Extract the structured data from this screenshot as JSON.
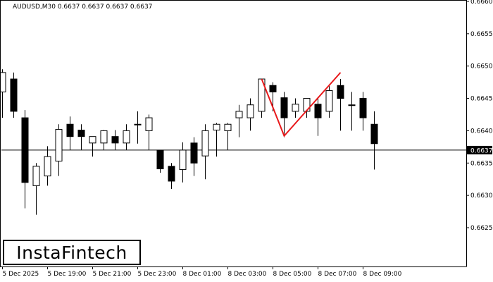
{
  "header": {
    "text": "AUDUSD,M30  0.6637 0.6637 0.6637 0.6637"
  },
  "logo": {
    "text": "InstaFintech"
  },
  "colors": {
    "background": "#ffffff",
    "axis": "#000000",
    "bull_body": "#ffffff",
    "bear_body": "#000000",
    "candle_outline": "#000000",
    "price_line": "#000000",
    "pattern_line": "#e8191b",
    "price_label_bg": "#000000",
    "price_label_text": "#ffffff"
  },
  "chart_data": {
    "type": "candlestick",
    "symbol": "AUDUSD",
    "timeframe": "M30",
    "ylim": [
      0.6619,
      0.666
    ],
    "y_ticks": [
      "0.6660",
      "0.6655",
      "0.6650",
      "0.6645",
      "0.6640",
      "0.6635",
      "0.6630",
      "0.6625"
    ],
    "x_ticks": [
      {
        "index": 0,
        "label": "5 Dec 2025"
      },
      {
        "index": 4,
        "label": "5 Dec 19:00"
      },
      {
        "index": 8,
        "label": "5 Dec 21:00"
      },
      {
        "index": 12,
        "label": "5 Dec 23:00"
      },
      {
        "index": 16,
        "label": "8 Dec 01:00"
      },
      {
        "index": 20,
        "label": "8 Dec 03:00"
      },
      {
        "index": 24,
        "label": "8 Dec 05:00"
      },
      {
        "index": 28,
        "label": "8 Dec 07:00"
      },
      {
        "index": 32,
        "label": "8 Dec 09:00"
      }
    ],
    "current_price": "0.6637",
    "current_price_value": 0.6637,
    "candles": [
      {
        "o": 0.6646,
        "h": 0.66495,
        "l": 0.6642,
        "c": 0.6649
      },
      {
        "o": 0.6648,
        "h": 0.6649,
        "l": 0.6642,
        "c": 0.6643
      },
      {
        "o": 0.6642,
        "h": 0.66432,
        "l": 0.6628,
        "c": 0.6632
      },
      {
        "o": 0.66315,
        "h": 0.6635,
        "l": 0.6627,
        "c": 0.66345
      },
      {
        "o": 0.6633,
        "h": 0.66376,
        "l": 0.66315,
        "c": 0.6636
      },
      {
        "o": 0.66353,
        "h": 0.6641,
        "l": 0.6633,
        "c": 0.66402
      },
      {
        "o": 0.6641,
        "h": 0.66422,
        "l": 0.6637,
        "c": 0.66391
      },
      {
        "o": 0.66401,
        "h": 0.6641,
        "l": 0.6637,
        "c": 0.66391
      },
      {
        "o": 0.66381,
        "h": 0.66391,
        "l": 0.6636,
        "c": 0.66391
      },
      {
        "o": 0.66381,
        "h": 0.66401,
        "l": 0.6637,
        "c": 0.664
      },
      {
        "o": 0.66391,
        "h": 0.66401,
        "l": 0.6637,
        "c": 0.66381
      },
      {
        "o": 0.66381,
        "h": 0.6641,
        "l": 0.6637,
        "c": 0.664
      },
      {
        "o": 0.6641,
        "h": 0.6643,
        "l": 0.6638,
        "c": 0.6641
      },
      {
        "o": 0.664,
        "h": 0.66425,
        "l": 0.6637,
        "c": 0.6642
      },
      {
        "o": 0.6637,
        "h": 0.6637,
        "l": 0.66335,
        "c": 0.66341
      },
      {
        "o": 0.66345,
        "h": 0.6635,
        "l": 0.6631,
        "c": 0.66322
      },
      {
        "o": 0.6634,
        "h": 0.66382,
        "l": 0.6632,
        "c": 0.6637
      },
      {
        "o": 0.66381,
        "h": 0.6639,
        "l": 0.6633,
        "c": 0.6635
      },
      {
        "o": 0.66361,
        "h": 0.6641,
        "l": 0.66325,
        "c": 0.664
      },
      {
        "o": 0.66401,
        "h": 0.66412,
        "l": 0.6636,
        "c": 0.6641
      },
      {
        "o": 0.664,
        "h": 0.66412,
        "l": 0.6637,
        "c": 0.6641
      },
      {
        "o": 0.6642,
        "h": 0.6644,
        "l": 0.6639,
        "c": 0.6643
      },
      {
        "o": 0.6642,
        "h": 0.6645,
        "l": 0.664,
        "c": 0.6644
      },
      {
        "o": 0.6643,
        "h": 0.6648,
        "l": 0.6642,
        "c": 0.6648
      },
      {
        "o": 0.6647,
        "h": 0.66475,
        "l": 0.6643,
        "c": 0.6646
      },
      {
        "o": 0.66451,
        "h": 0.6646,
        "l": 0.6639,
        "c": 0.6642
      },
      {
        "o": 0.6643,
        "h": 0.6645,
        "l": 0.6642,
        "c": 0.66441
      },
      {
        "o": 0.6643,
        "h": 0.6645,
        "l": 0.6642,
        "c": 0.6645
      },
      {
        "o": 0.66441,
        "h": 0.6645,
        "l": 0.66392,
        "c": 0.6642
      },
      {
        "o": 0.6643,
        "h": 0.6647,
        "l": 0.6642,
        "c": 0.66462
      },
      {
        "o": 0.6647,
        "h": 0.6648,
        "l": 0.664,
        "c": 0.6645
      },
      {
        "o": 0.6644,
        "h": 0.6646,
        "l": 0.664,
        "c": 0.6644
      },
      {
        "o": 0.6645,
        "h": 0.6646,
        "l": 0.664,
        "c": 0.6642
      },
      {
        "o": 0.6641,
        "h": 0.6643,
        "l": 0.6634,
        "c": 0.6638
      }
    ],
    "pattern": {
      "name": "Double Top",
      "points": [
        {
          "index": 23,
          "price": 0.6648
        },
        {
          "index": 25,
          "price": 0.66392
        },
        {
          "index": 30,
          "price": 0.6649
        }
      ]
    }
  }
}
